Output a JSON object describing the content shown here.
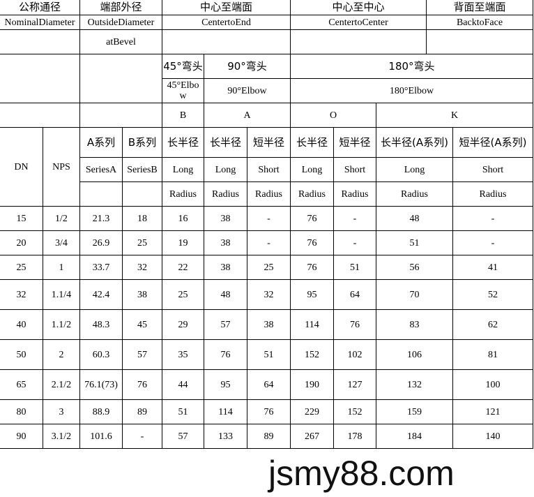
{
  "header": {
    "nominal_cn": "公称通径",
    "nominal_en": "NominalDiameter",
    "outside_cn": "端部外径",
    "outside_en": "OutsideDiameter",
    "outside_en2": "atBevel",
    "c2e_cn": "中心至端面",
    "c2e_en": "CentertoEnd",
    "c2c_cn": "中心至中心",
    "c2c_en": "CentertoCenter",
    "b2f_cn": "背面至端面",
    "b2f_en": "BacktoFace",
    "e45_cn": "45°弯头",
    "e45_en": "45°Elbow",
    "e90_cn": "90°弯头",
    "e90_en": "90°Elbow",
    "e180_cn": "180°弯头",
    "e180_en": "180°Elbow",
    "sym_b": "B",
    "sym_a": "A",
    "sym_o": "O",
    "sym_k": "K",
    "dn": "DN",
    "nps": "NPS",
    "seriesA_cn": "A系列",
    "seriesB_cn": "B系列",
    "seriesA_en": "SeriesA",
    "seriesB_en": "SeriesB",
    "long_cn": "长半径",
    "short_cn": "短半径",
    "longA_cn": "长半径(A系列)",
    "shortA_cn": "短半径(A系列)",
    "long_en": "Long",
    "short_en": "Short",
    "radius_en": "Radius"
  },
  "rows": [
    [
      "15",
      "1/2",
      "21.3",
      "18",
      "16",
      "38",
      "-",
      "76",
      "-",
      "48",
      "-"
    ],
    [
      "20",
      "3/4",
      "26.9",
      "25",
      "19",
      "38",
      "-",
      "76",
      "-",
      "51",
      "-"
    ],
    [
      "25",
      "1",
      "33.7",
      "32",
      "22",
      "38",
      "25",
      "76",
      "51",
      "56",
      "41"
    ],
    [
      "32",
      "1.1/4",
      "42.4",
      "38",
      "25",
      "48",
      "32",
      "95",
      "64",
      "70",
      "52"
    ],
    [
      "40",
      "1.1/2",
      "48.3",
      "45",
      "29",
      "57",
      "38",
      "114",
      "76",
      "83",
      "62"
    ],
    [
      "50",
      "2",
      "60.3",
      "57",
      "35",
      "76",
      "51",
      "152",
      "102",
      "106",
      "81"
    ],
    [
      "65",
      "2.1/2",
      "76.1(73)",
      "76",
      "44",
      "95",
      "64",
      "190",
      "127",
      "132",
      "100"
    ],
    [
      "80",
      "3",
      "88.9",
      "89",
      "51",
      "114",
      "76",
      "229",
      "152",
      "159",
      "121"
    ],
    [
      "90",
      "3.1/2",
      "101.6",
      "-",
      "57",
      "133",
      "89",
      "267",
      "178",
      "184",
      "140"
    ]
  ],
  "watermark": "jsmy88.com"
}
